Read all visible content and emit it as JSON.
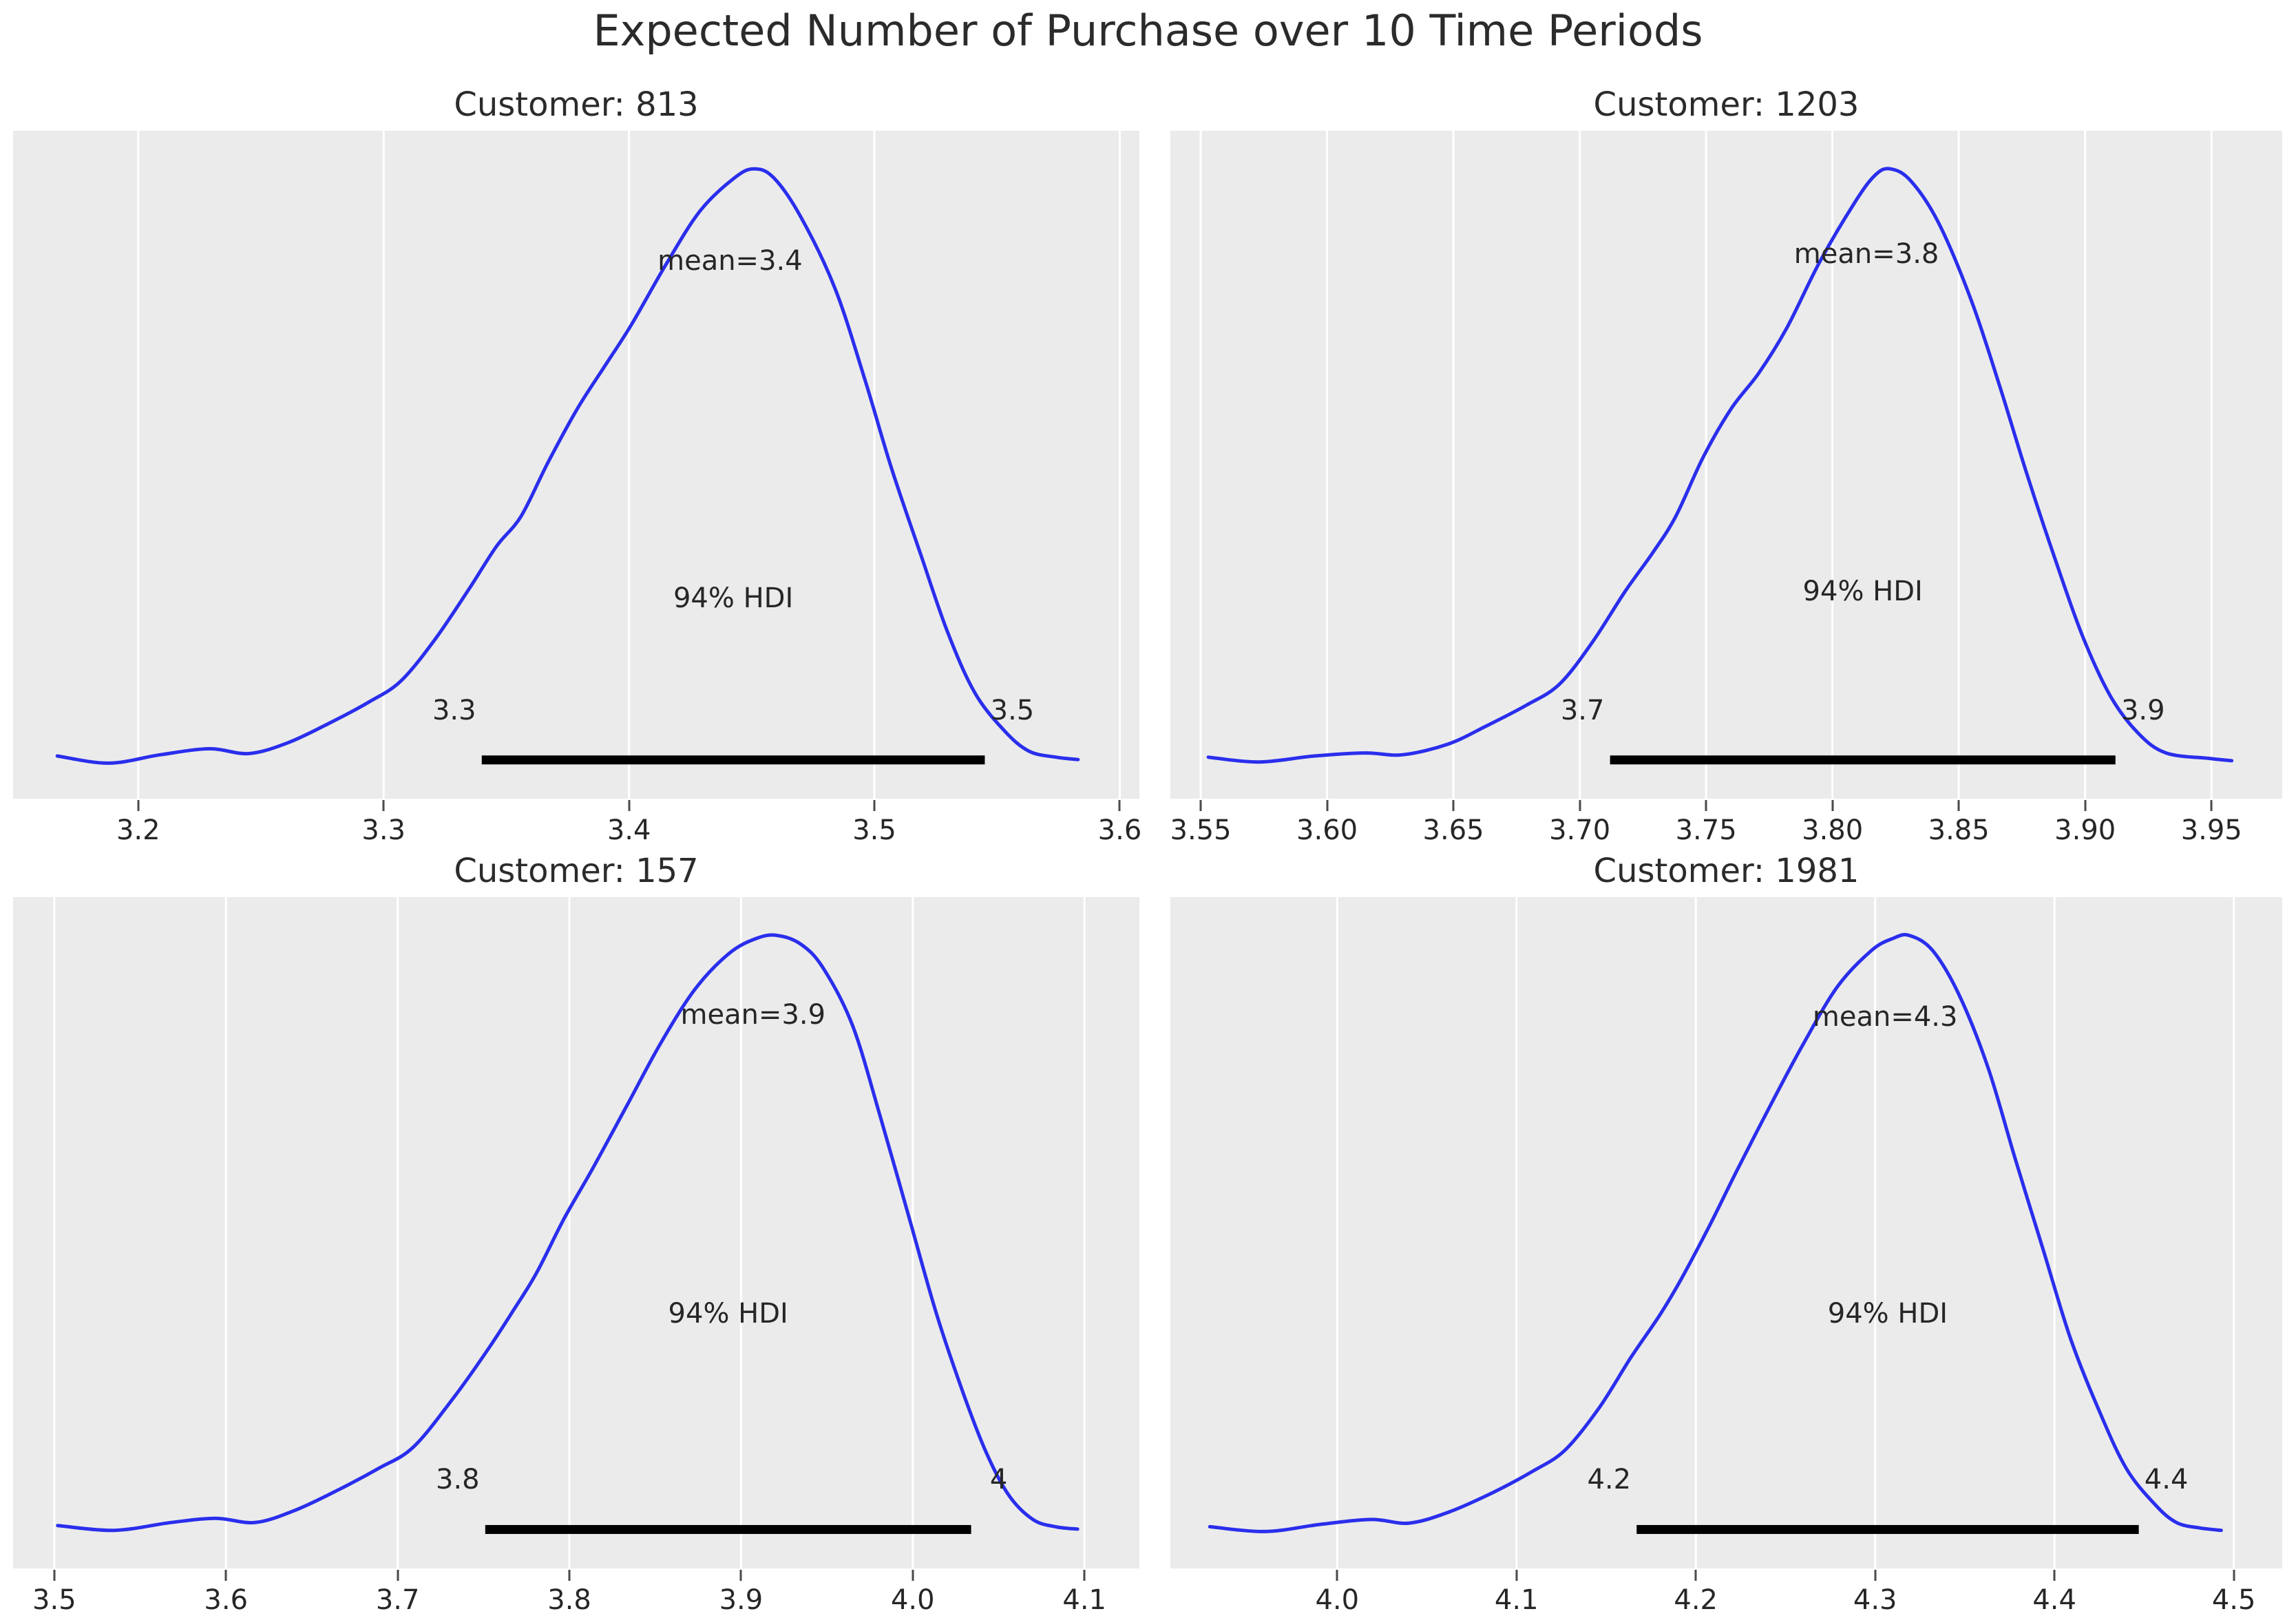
{
  "chart_data": {
    "type": "area",
    "suptitle": "Expected Number of Purchase over 10 Time Periods",
    "hdi_probability": "94%",
    "colors": {
      "curve": "#2a2eec",
      "panel_bg": "#ebebeb",
      "grid": "#ffffff",
      "hdi_bar": "#000000",
      "text": "#262626"
    },
    "panels": [
      {
        "id": "customer-813",
        "title": "Customer: 813",
        "mean_label": "mean=3.4",
        "mean_value": 3.4,
        "hdi_text": "94% HDI",
        "hdi": {
          "lo": 3.34,
          "hi": 3.545,
          "lo_label": "3.3",
          "hi_label": "3.5"
        },
        "x_domain": [
          3.149,
          3.608
        ],
        "x_tick_values": [
          3.2,
          3.3,
          3.4,
          3.5,
          3.6
        ],
        "x_tick_labels": [
          "3.2",
          "3.3",
          "3.4",
          "3.5",
          "3.6"
        ],
        "peak_x": 3.451,
        "curve": {
          "x": [
            3.167,
            3.188,
            3.209,
            3.229,
            3.245,
            3.261,
            3.278,
            3.294,
            3.307,
            3.321,
            3.335,
            3.346,
            3.356,
            3.367,
            3.379,
            3.39,
            3.401,
            3.415,
            3.429,
            3.443,
            3.451,
            3.459,
            3.47,
            3.484,
            3.496,
            3.507,
            3.519,
            3.53,
            3.541,
            3.553,
            3.563,
            3.574,
            3.583
          ],
          "d": [
            0.02,
            0.008,
            0.022,
            0.032,
            0.024,
            0.042,
            0.075,
            0.11,
            0.145,
            0.215,
            0.3,
            0.37,
            0.42,
            0.51,
            0.6,
            0.67,
            0.74,
            0.84,
            0.93,
            0.985,
            1.0,
            0.985,
            0.92,
            0.8,
            0.65,
            0.5,
            0.355,
            0.225,
            0.125,
            0.062,
            0.028,
            0.018,
            0.014
          ]
        }
      },
      {
        "id": "customer-1203",
        "title": "Customer: 1203",
        "mean_label": "mean=3.8",
        "mean_value": 3.8,
        "hdi_text": "94% HDI",
        "hdi": {
          "lo": 3.712,
          "hi": 3.912,
          "lo_label": "3.7",
          "hi_label": "3.9"
        },
        "x_domain": [
          3.538,
          3.978
        ],
        "x_tick_values": [
          3.55,
          3.6,
          3.65,
          3.7,
          3.75,
          3.8,
          3.85,
          3.9,
          3.95
        ],
        "x_tick_labels": [
          "3.55",
          "3.60",
          "3.65",
          "3.70",
          "3.75",
          "3.80",
          "3.85",
          "3.90",
          "3.95"
        ],
        "peak_x": 3.823,
        "curve": {
          "x": [
            3.553,
            3.573,
            3.595,
            3.615,
            3.63,
            3.648,
            3.663,
            3.679,
            3.692,
            3.705,
            3.718,
            3.729,
            3.738,
            3.749,
            3.76,
            3.771,
            3.782,
            3.795,
            3.809,
            3.817,
            3.823,
            3.831,
            3.842,
            3.855,
            3.866,
            3.877,
            3.888,
            3.899,
            3.91,
            3.921,
            3.932,
            3.949,
            3.958
          ],
          "d": [
            0.018,
            0.01,
            0.02,
            0.025,
            0.022,
            0.04,
            0.07,
            0.105,
            0.14,
            0.21,
            0.295,
            0.36,
            0.42,
            0.52,
            0.6,
            0.66,
            0.735,
            0.845,
            0.945,
            0.99,
            1.0,
            0.98,
            0.91,
            0.78,
            0.64,
            0.49,
            0.35,
            0.22,
            0.12,
            0.058,
            0.025,
            0.016,
            0.012
          ]
        }
      },
      {
        "id": "customer-157",
        "title": "Customer: 157",
        "mean_label": "mean=3.9",
        "mean_value": 3.9,
        "hdi_text": "94% HDI",
        "hdi": {
          "lo": 3.751,
          "hi": 4.034,
          "lo_label": "3.8",
          "hi_label": "4"
        },
        "x_domain": [
          3.476,
          4.132
        ],
        "x_tick_values": [
          3.5,
          3.6,
          3.7,
          3.8,
          3.9,
          4.0,
          4.1
        ],
        "x_tick_labels": [
          "3.5",
          "3.6",
          "3.7",
          "3.8",
          "3.9",
          "4.0",
          "4.1"
        ],
        "peak_x": 3.921,
        "curve": {
          "x": [
            3.502,
            3.535,
            3.568,
            3.594,
            3.617,
            3.64,
            3.666,
            3.689,
            3.709,
            3.732,
            3.752,
            3.768,
            3.781,
            3.797,
            3.814,
            3.834,
            3.853,
            3.873,
            3.893,
            3.909,
            3.921,
            3.935,
            3.948,
            3.965,
            3.981,
            3.998,
            4.014,
            4.03,
            4.043,
            4.056,
            4.07,
            4.083,
            4.096
          ],
          "d": [
            0.02,
            0.012,
            0.025,
            0.032,
            0.025,
            0.045,
            0.08,
            0.115,
            0.15,
            0.23,
            0.31,
            0.38,
            0.44,
            0.53,
            0.615,
            0.72,
            0.82,
            0.91,
            0.97,
            0.995,
            1.0,
            0.985,
            0.945,
            0.85,
            0.7,
            0.53,
            0.37,
            0.235,
            0.14,
            0.07,
            0.03,
            0.018,
            0.014
          ]
        }
      },
      {
        "id": "customer-1981",
        "title": "Customer: 1981",
        "mean_label": "mean=4.3",
        "mean_value": 4.3,
        "hdi_text": "94% HDI",
        "hdi": {
          "lo": 4.167,
          "hi": 4.447,
          "lo_label": "4.2",
          "hi_label": "4.4"
        },
        "x_domain": [
          3.907,
          4.527
        ],
        "x_tick_values": [
          4.0,
          4.1,
          4.2,
          4.3,
          4.4,
          4.5
        ],
        "x_tick_labels": [
          "4.0",
          "4.1",
          "4.2",
          "4.3",
          "4.4",
          "4.5"
        ],
        "peak_x": 4.319,
        "curve": {
          "x": [
            3.929,
            3.96,
            3.991,
            4.019,
            4.04,
            4.062,
            4.087,
            4.109,
            4.127,
            4.146,
            4.164,
            4.18,
            4.192,
            4.208,
            4.223,
            4.242,
            4.26,
            4.279,
            4.298,
            4.31,
            4.319,
            4.332,
            4.347,
            4.363,
            4.378,
            4.394,
            4.409,
            4.425,
            4.44,
            4.456,
            4.468,
            4.481,
            4.493
          ],
          "d": [
            0.018,
            0.01,
            0.022,
            0.03,
            0.024,
            0.042,
            0.075,
            0.11,
            0.145,
            0.215,
            0.3,
            0.37,
            0.43,
            0.52,
            0.61,
            0.72,
            0.82,
            0.915,
            0.975,
            0.995,
            1.0,
            0.975,
            0.9,
            0.78,
            0.63,
            0.475,
            0.33,
            0.21,
            0.115,
            0.055,
            0.025,
            0.016,
            0.012
          ]
        }
      }
    ]
  }
}
